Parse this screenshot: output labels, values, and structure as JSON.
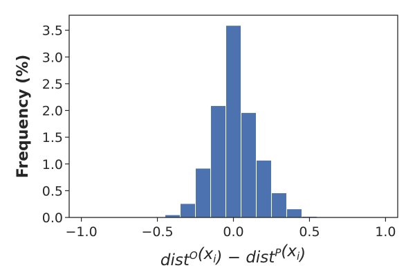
{
  "chart_data": {
    "type": "bar",
    "title": "",
    "xlabel_parts": [
      {
        "t": "dist",
        "sup": "O",
        "sub": ""
      },
      {
        "t": "(x",
        "sup": "",
        "sub": "i"
      },
      {
        "t": ") − dist",
        "sup": "P",
        "sub": ""
      },
      {
        "t": "(x",
        "sup": "",
        "sub": "i"
      },
      {
        "t": ")",
        "sup": "",
        "sub": ""
      }
    ],
    "ylabel": "Frequency (%)",
    "xlim": [
      -1.08,
      1.08
    ],
    "ylim": [
      0,
      3.78
    ],
    "xticks": [
      -1.0,
      -0.5,
      0.0,
      0.5,
      1.0
    ],
    "xtick_labels": [
      "−1.0",
      "−0.5",
      "0.0",
      "0.5",
      "1.0"
    ],
    "yticks": [
      0.0,
      0.5,
      1.0,
      1.5,
      2.0,
      2.5,
      3.0,
      3.5
    ],
    "ytick_labels": [
      "0.0",
      "0.5",
      "1.0",
      "1.5",
      "2.0",
      "2.5",
      "3.0",
      "3.5"
    ],
    "bin_edges": [
      -0.45,
      -0.35,
      -0.25,
      -0.15,
      -0.05,
      0.05,
      0.15,
      0.25,
      0.35,
      0.45,
      0.55
    ],
    "values": [
      0.05,
      0.26,
      0.92,
      2.09,
      3.59,
      1.96,
      1.07,
      0.46,
      0.16,
      0.02
    ],
    "bar_color": "#4c72b0",
    "grid": false,
    "legend": "none"
  }
}
